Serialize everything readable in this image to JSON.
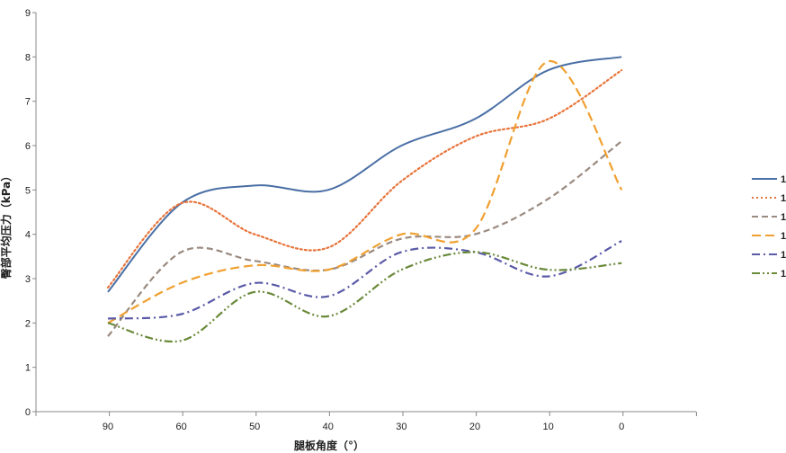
{
  "chart_data": {
    "type": "line",
    "xlabel": "腿板角度（°）",
    "ylabel": "臀部平均压力（kPa）",
    "x": [
      90,
      60,
      50,
      40,
      30,
      20,
      10,
      0
    ],
    "x_ticks": [
      "90",
      "60",
      "50",
      "40",
      "30",
      "20",
      "10",
      "0"
    ],
    "ylim": [
      0,
      9
    ],
    "y_ticks": [
      "0",
      "1",
      "2",
      "3",
      "4",
      "5",
      "6",
      "7",
      "8",
      "9"
    ],
    "grid": false,
    "legend_position": "right",
    "series": [
      {
        "name": "1",
        "color": "#4a6fa5",
        "dash": "solid",
        "values": [
          2.7,
          4.7,
          5.1,
          5.0,
          6.0,
          6.6,
          7.7,
          8.0
        ]
      },
      {
        "name": "1",
        "color": "#e8743b",
        "dash": "dot",
        "values": [
          2.8,
          4.7,
          4.0,
          3.7,
          5.2,
          6.2,
          6.6,
          7.7
        ]
      },
      {
        "name": "1",
        "color": "#9a8a80",
        "dash": "dash",
        "values": [
          1.7,
          3.6,
          3.4,
          3.2,
          3.9,
          4.0,
          4.8,
          6.1
        ]
      },
      {
        "name": "1",
        "color": "#f0a030",
        "dash": "longdash",
        "values": [
          2.0,
          2.9,
          3.3,
          3.2,
          4.0,
          4.1,
          7.9,
          5.0
        ]
      },
      {
        "name": "1",
        "color": "#5a5aa8",
        "dash": "dashdot",
        "values": [
          2.1,
          2.2,
          2.9,
          2.6,
          3.6,
          3.6,
          3.05,
          3.85
        ]
      },
      {
        "name": "1",
        "color": "#6a8a3a",
        "dash": "dashdotdot",
        "values": [
          2.0,
          1.6,
          2.7,
          2.15,
          3.2,
          3.6,
          3.2,
          3.35
        ]
      }
    ]
  }
}
